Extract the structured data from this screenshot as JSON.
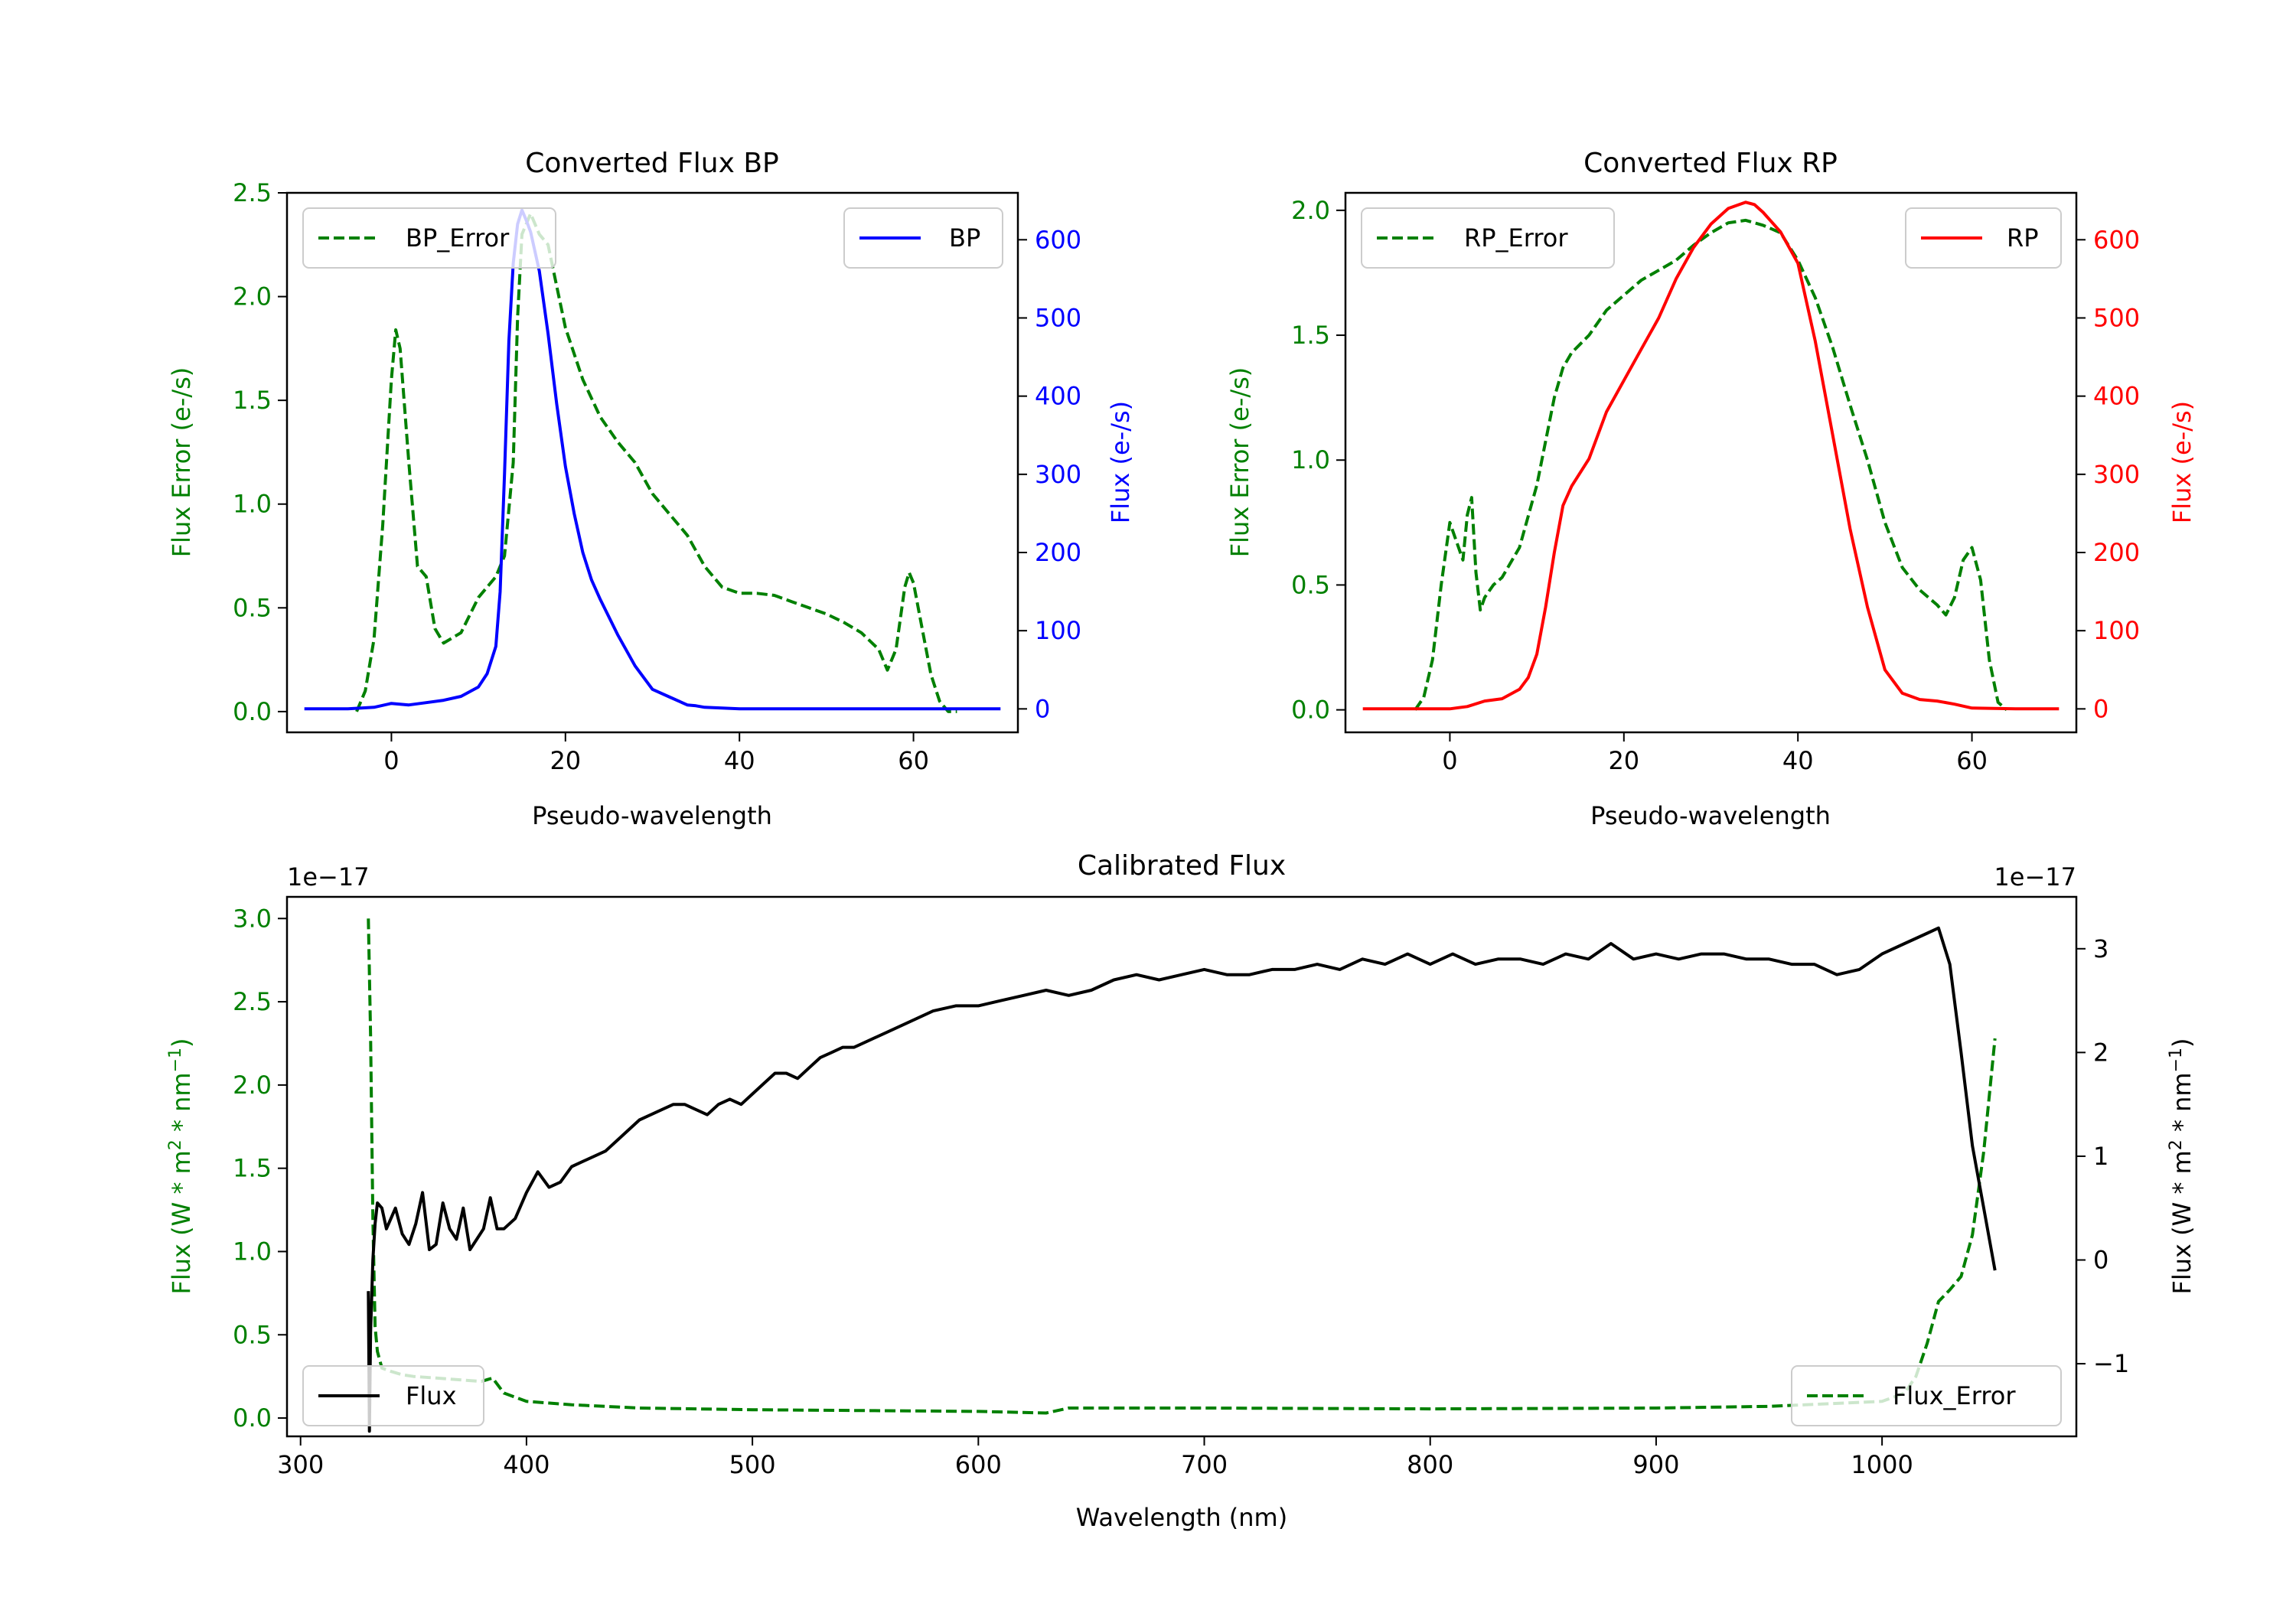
{
  "colors": {
    "green": "#008000",
    "blue": "#0000ff",
    "red": "#ff0000",
    "black": "#000000"
  },
  "chart_data": [
    {
      "id": "bp",
      "type": "line",
      "title": "Converted Flux BP",
      "xlabel": "Pseudo-wavelength",
      "xlim": [
        -12,
        72
      ],
      "xticks": [
        0,
        20,
        40,
        60
      ],
      "y_left": {
        "label": "Flux Error (e-/s)",
        "color": "green",
        "lim": [
          -0.1,
          2.5
        ],
        "ticks": [
          0.0,
          0.5,
          1.0,
          1.5,
          2.0,
          2.5
        ],
        "tick_labels": [
          "0.0",
          "0.5",
          "1.0",
          "1.5",
          "2.0",
          "2.5"
        ]
      },
      "y_right": {
        "label": "Flux (e-/s)",
        "color": "blue",
        "lim": [
          -30,
          660
        ],
        "ticks": [
          0,
          100,
          200,
          300,
          400,
          500,
          600
        ],
        "tick_labels": [
          "0",
          "100",
          "200",
          "300",
          "400",
          "500",
          "600"
        ]
      },
      "series": [
        {
          "name": "BP_Error",
          "axis": "left",
          "color": "green",
          "dash": true,
          "legend_loc": "upper left",
          "x": [
            -4,
            -3,
            -2,
            -1,
            0,
            0.5,
            1,
            2,
            3,
            4,
            5,
            6,
            8,
            10,
            12,
            13,
            14,
            14.5,
            15,
            16,
            17,
            18,
            19,
            20,
            22,
            24,
            26,
            28,
            30,
            32,
            34,
            36,
            38,
            40,
            42,
            44,
            46,
            48,
            50,
            52,
            54,
            56,
            57,
            58,
            59,
            59.5,
            60,
            61,
            62,
            63,
            64,
            65
          ],
          "values": [
            0.0,
            0.1,
            0.35,
            0.9,
            1.6,
            1.84,
            1.75,
            1.2,
            0.7,
            0.65,
            0.4,
            0.33,
            0.38,
            0.55,
            0.65,
            0.75,
            1.2,
            1.9,
            2.3,
            2.4,
            2.3,
            2.25,
            2.05,
            1.85,
            1.6,
            1.42,
            1.3,
            1.2,
            1.05,
            0.95,
            0.85,
            0.7,
            0.6,
            0.57,
            0.57,
            0.56,
            0.53,
            0.5,
            0.47,
            0.43,
            0.38,
            0.3,
            0.2,
            0.3,
            0.6,
            0.67,
            0.62,
            0.4,
            0.18,
            0.05,
            0.0,
            0.0
          ]
        },
        {
          "name": "BP",
          "axis": "right",
          "color": "blue",
          "dash": false,
          "legend_loc": "upper right",
          "x": [
            -10,
            -5,
            -2,
            0,
            1,
            2,
            4,
            6,
            8,
            10,
            11,
            12,
            12.5,
            13,
            13.5,
            14,
            14.5,
            15,
            15.5,
            16,
            17,
            18,
            19,
            20,
            21,
            22,
            23,
            24,
            26,
            28,
            30,
            32,
            34,
            35,
            36,
            38,
            40,
            45,
            50,
            55,
            60,
            65,
            70
          ],
          "values": [
            0,
            0,
            2,
            7,
            6,
            5,
            8,
            11,
            16,
            28,
            45,
            80,
            150,
            300,
            470,
            570,
            620,
            638,
            625,
            610,
            560,
            480,
            390,
            310,
            250,
            200,
            165,
            140,
            95,
            55,
            25,
            15,
            5,
            4,
            2,
            1,
            0,
            0,
            0,
            0,
            0,
            0,
            0
          ]
        }
      ]
    },
    {
      "id": "rp",
      "type": "line",
      "title": "Converted Flux RP",
      "xlabel": "Pseudo-wavelength",
      "xlim": [
        -12,
        72
      ],
      "xticks": [
        0,
        20,
        40,
        60
      ],
      "y_left": {
        "label": "Flux Error (e-/s)",
        "color": "green",
        "lim": [
          -0.09,
          2.07
        ],
        "ticks": [
          0.0,
          0.5,
          1.0,
          1.5,
          2.0
        ],
        "tick_labels": [
          "0.0",
          "0.5",
          "1.0",
          "1.5",
          "2.0"
        ]
      },
      "y_right": {
        "label": "Flux (e-/s)",
        "color": "red",
        "lim": [
          -30,
          660
        ],
        "ticks": [
          0,
          100,
          200,
          300,
          400,
          500,
          600
        ],
        "tick_labels": [
          "0",
          "100",
          "200",
          "300",
          "400",
          "500",
          "600"
        ]
      },
      "series": [
        {
          "name": "RP_Error",
          "axis": "left",
          "color": "green",
          "dash": true,
          "legend_loc": "upper left",
          "x": [
            -4,
            -3,
            -2,
            -1,
            0,
            0.5,
            1,
            1.5,
            2,
            2.5,
            3,
            3.5,
            4,
            5,
            6,
            8,
            10,
            12,
            13,
            14,
            16,
            18,
            20,
            22,
            24,
            26,
            28,
            30,
            32,
            34,
            36,
            38,
            40,
            42,
            44,
            46,
            48,
            50,
            52,
            54,
            56,
            57,
            58,
            59,
            60,
            61,
            62,
            63,
            64
          ],
          "values": [
            0.0,
            0.05,
            0.2,
            0.5,
            0.75,
            0.7,
            0.65,
            0.6,
            0.78,
            0.85,
            0.55,
            0.4,
            0.45,
            0.5,
            0.53,
            0.65,
            0.9,
            1.25,
            1.37,
            1.43,
            1.5,
            1.6,
            1.66,
            1.72,
            1.76,
            1.8,
            1.86,
            1.91,
            1.95,
            1.96,
            1.94,
            1.91,
            1.8,
            1.65,
            1.45,
            1.22,
            1.0,
            0.75,
            0.57,
            0.48,
            0.42,
            0.38,
            0.45,
            0.6,
            0.65,
            0.52,
            0.2,
            0.03,
            0.0
          ]
        },
        {
          "name": "RP",
          "axis": "right",
          "color": "red",
          "dash": false,
          "legend_loc": "upper right",
          "x": [
            -10,
            -5,
            -2,
            0,
            2,
            4,
            6,
            8,
            9,
            10,
            11,
            12,
            13,
            14,
            16,
            18,
            20,
            22,
            24,
            26,
            28,
            30,
            32,
            34,
            35,
            36,
            38,
            40,
            42,
            44,
            46,
            48,
            50,
            52,
            54,
            56,
            58,
            60,
            65,
            70
          ],
          "values": [
            0,
            0,
            0,
            0,
            3,
            10,
            13,
            25,
            40,
            70,
            130,
            200,
            260,
            285,
            320,
            380,
            420,
            460,
            500,
            550,
            590,
            620,
            640,
            648,
            645,
            635,
            610,
            570,
            470,
            350,
            230,
            130,
            50,
            20,
            12,
            10,
            6,
            1,
            0,
            0
          ]
        }
      ]
    },
    {
      "id": "cal",
      "type": "line",
      "title": "Calibrated Flux",
      "xlabel": "Wavelength (nm)",
      "xlim": [
        294,
        1086
      ],
      "xticks": [
        300,
        400,
        500,
        600,
        700,
        800,
        900,
        1000
      ],
      "y_left": {
        "label_parts": [
          "Flux (W * m",
          "2",
          " * nm",
          "−1",
          ")"
        ],
        "offset_text": "1e−17",
        "color": "green",
        "lim": [
          -0.11,
          3.13
        ],
        "ticks": [
          0.0,
          0.5,
          1.0,
          1.5,
          2.0,
          2.5,
          3.0
        ],
        "tick_labels": [
          "0.0",
          "0.5",
          "1.0",
          "1.5",
          "2.0",
          "2.5",
          "3.0"
        ]
      },
      "y_right": {
        "label_parts": [
          "Flux (W * m",
          "2",
          " * nm",
          "−1",
          ")"
        ],
        "offset_text": "1e−17",
        "color": "black",
        "lim": [
          -1.7,
          3.5
        ],
        "ticks": [
          -1,
          0,
          1,
          2,
          3
        ],
        "tick_labels": [
          "−1",
          "0",
          "1",
          "2",
          "3"
        ]
      },
      "series": [
        {
          "name": "Flux_Error",
          "axis": "left",
          "color": "green",
          "dash": true,
          "legend_loc": "lower right",
          "x": [
            330,
            331,
            332,
            333,
            334,
            336,
            340,
            345,
            350,
            360,
            370,
            380,
            385,
            390,
            400,
            420,
            450,
            500,
            550,
            600,
            630,
            640,
            700,
            800,
            900,
            950,
            1000,
            1010,
            1015,
            1020,
            1025,
            1030,
            1035,
            1040,
            1045,
            1050
          ],
          "values": [
            3.0,
            2.3,
            1.2,
            0.55,
            0.4,
            0.3,
            0.28,
            0.26,
            0.25,
            0.24,
            0.23,
            0.22,
            0.24,
            0.15,
            0.1,
            0.08,
            0.06,
            0.05,
            0.045,
            0.04,
            0.03,
            0.06,
            0.06,
            0.055,
            0.06,
            0.07,
            0.1,
            0.15,
            0.25,
            0.45,
            0.7,
            0.77,
            0.85,
            1.1,
            1.6,
            2.28
          ]
        },
        {
          "name": "Flux",
          "axis": "right",
          "color": "black",
          "dash": false,
          "legend_loc": "lower left",
          "x": [
            330,
            330.5,
            331,
            332,
            333,
            334,
            336,
            338,
            340,
            342,
            345,
            348,
            351,
            354,
            357,
            360,
            363,
            366,
            369,
            372,
            375,
            378,
            381,
            384,
            387,
            390,
            395,
            400,
            405,
            410,
            415,
            420,
            425,
            430,
            435,
            440,
            445,
            450,
            455,
            460,
            465,
            470,
            475,
            480,
            485,
            490,
            495,
            500,
            505,
            510,
            515,
            520,
            525,
            530,
            535,
            540,
            545,
            550,
            560,
            570,
            580,
            590,
            600,
            610,
            620,
            630,
            640,
            650,
            660,
            670,
            680,
            690,
            700,
            710,
            720,
            730,
            740,
            750,
            760,
            770,
            780,
            790,
            800,
            810,
            820,
            830,
            840,
            850,
            860,
            870,
            880,
            890,
            900,
            910,
            920,
            930,
            940,
            950,
            960,
            970,
            980,
            990,
            1000,
            1010,
            1020,
            1025,
            1030,
            1035,
            1040,
            1045,
            1050
          ],
          "values": [
            -0.3,
            -1.65,
            -0.7,
            0.0,
            0.35,
            0.55,
            0.5,
            0.3,
            0.4,
            0.5,
            0.25,
            0.15,
            0.35,
            0.65,
            0.1,
            0.15,
            0.55,
            0.3,
            0.2,
            0.5,
            0.1,
            0.2,
            0.3,
            0.6,
            0.3,
            0.3,
            0.4,
            0.65,
            0.85,
            0.7,
            0.75,
            0.9,
            0.95,
            1.0,
            1.05,
            1.15,
            1.25,
            1.35,
            1.4,
            1.45,
            1.5,
            1.5,
            1.45,
            1.4,
            1.5,
            1.55,
            1.5,
            1.6,
            1.7,
            1.8,
            1.8,
            1.75,
            1.85,
            1.95,
            2.0,
            2.05,
            2.05,
            2.1,
            2.2,
            2.3,
            2.4,
            2.45,
            2.45,
            2.5,
            2.55,
            2.6,
            2.55,
            2.6,
            2.7,
            2.75,
            2.7,
            2.75,
            2.8,
            2.75,
            2.75,
            2.8,
            2.8,
            2.85,
            2.8,
            2.9,
            2.85,
            2.95,
            2.85,
            2.95,
            2.85,
            2.9,
            2.9,
            2.85,
            2.95,
            2.9,
            3.05,
            2.9,
            2.95,
            2.9,
            2.95,
            2.95,
            2.9,
            2.9,
            2.85,
            2.85,
            2.75,
            2.8,
            2.95,
            3.05,
            3.15,
            3.2,
            2.85,
            2.0,
            1.1,
            0.5,
            -0.1
          ]
        }
      ]
    }
  ]
}
